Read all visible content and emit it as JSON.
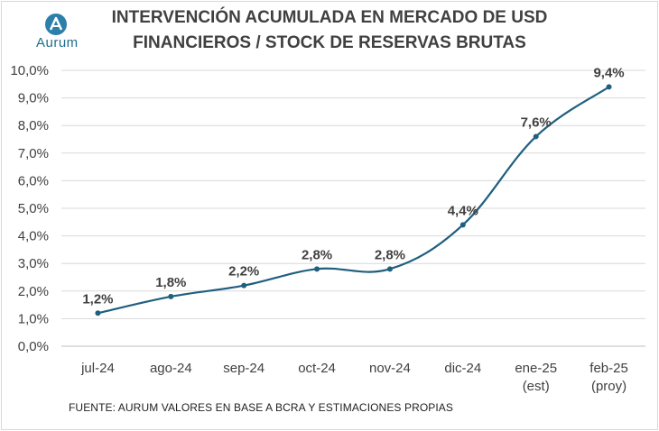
{
  "title": {
    "line1": "INTERVENCIÓN ACUMULADA EN MERCADO DE USD",
    "line2": "FINANCIEROS / STOCK DE RESERVAS BRUTAS"
  },
  "logo": {
    "text": "Aurum",
    "icon": "aurum-logo-icon"
  },
  "footer": {
    "source": "FUENTE: AURUM VALORES EN BASE A BCRA Y ESTIMACIONES PROPIAS"
  },
  "colors": {
    "line": "#1f5f7f",
    "text": "#404040",
    "grid": "#d9d9d9"
  },
  "chart_data": {
    "type": "line",
    "categories": [
      [
        "jul-24"
      ],
      [
        "ago-24"
      ],
      [
        "sep-24"
      ],
      [
        "oct-24"
      ],
      [
        "nov-24"
      ],
      [
        "dic-24"
      ],
      [
        "ene-25",
        "(est)"
      ],
      [
        "feb-25",
        "(proy)"
      ]
    ],
    "values": [
      1.2,
      1.8,
      2.2,
      2.8,
      2.8,
      4.4,
      7.6,
      9.4
    ],
    "data_labels": [
      "1,2%",
      "1,8%",
      "2,2%",
      "2,8%",
      "2,8%",
      "4,4%",
      "7,6%",
      "9,4%"
    ],
    "y_ticks": [
      "0,0%",
      "1,0%",
      "2,0%",
      "3,0%",
      "4,0%",
      "5,0%",
      "6,0%",
      "7,0%",
      "8,0%",
      "9,0%",
      "10,0%"
    ],
    "ylim": [
      0,
      10
    ],
    "grid": true,
    "legend": false
  }
}
